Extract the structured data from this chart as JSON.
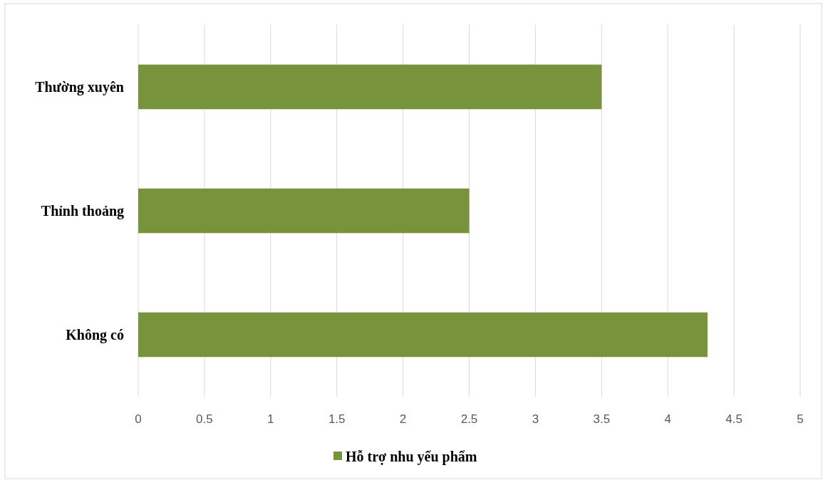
{
  "chart_data": {
    "type": "bar",
    "orientation": "horizontal",
    "categories": [
      "Thường xuyên",
      "Thỉnh thoảng",
      "Không có"
    ],
    "series": [
      {
        "name": "Hỗ trợ nhu yếu phẩm",
        "color": "#77933c",
        "values": [
          3.5,
          2.5,
          4.3
        ]
      }
    ],
    "xlim": [
      0,
      5
    ],
    "xticks": [
      0,
      0.5,
      1,
      1.5,
      2,
      2.5,
      3,
      3.5,
      4,
      4.5,
      5
    ],
    "grid": "x",
    "legend": "bottom"
  }
}
